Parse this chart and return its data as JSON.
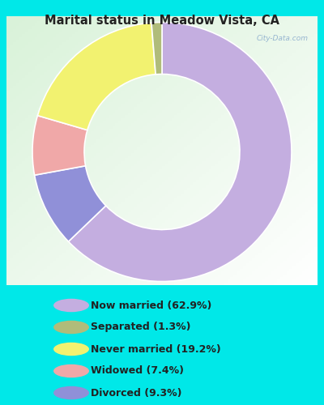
{
  "title": "Marital status in Meadow Vista, CA",
  "slices": [
    62.9,
    1.3,
    19.2,
    7.4,
    9.3
  ],
  "colors": [
    "#c4aee0",
    "#b0bc7a",
    "#f2f270",
    "#f0a8a8",
    "#9090d8"
  ],
  "labels": [
    "Now married (62.9%)",
    "Separated (1.3%)",
    "Never married (19.2%)",
    "Widowed (7.4%)",
    "Divorced (9.3%)"
  ],
  "legend_marker_colors": [
    "#c4aee0",
    "#b0bc7a",
    "#f2f270",
    "#f0a8a8",
    "#9090d8"
  ],
  "bg_outer": "#00e8e8",
  "title_color": "#222222",
  "legend_text_color": "#222222",
  "watermark": "City-Data.com",
  "start_angle": 90,
  "donut_width": 0.4
}
